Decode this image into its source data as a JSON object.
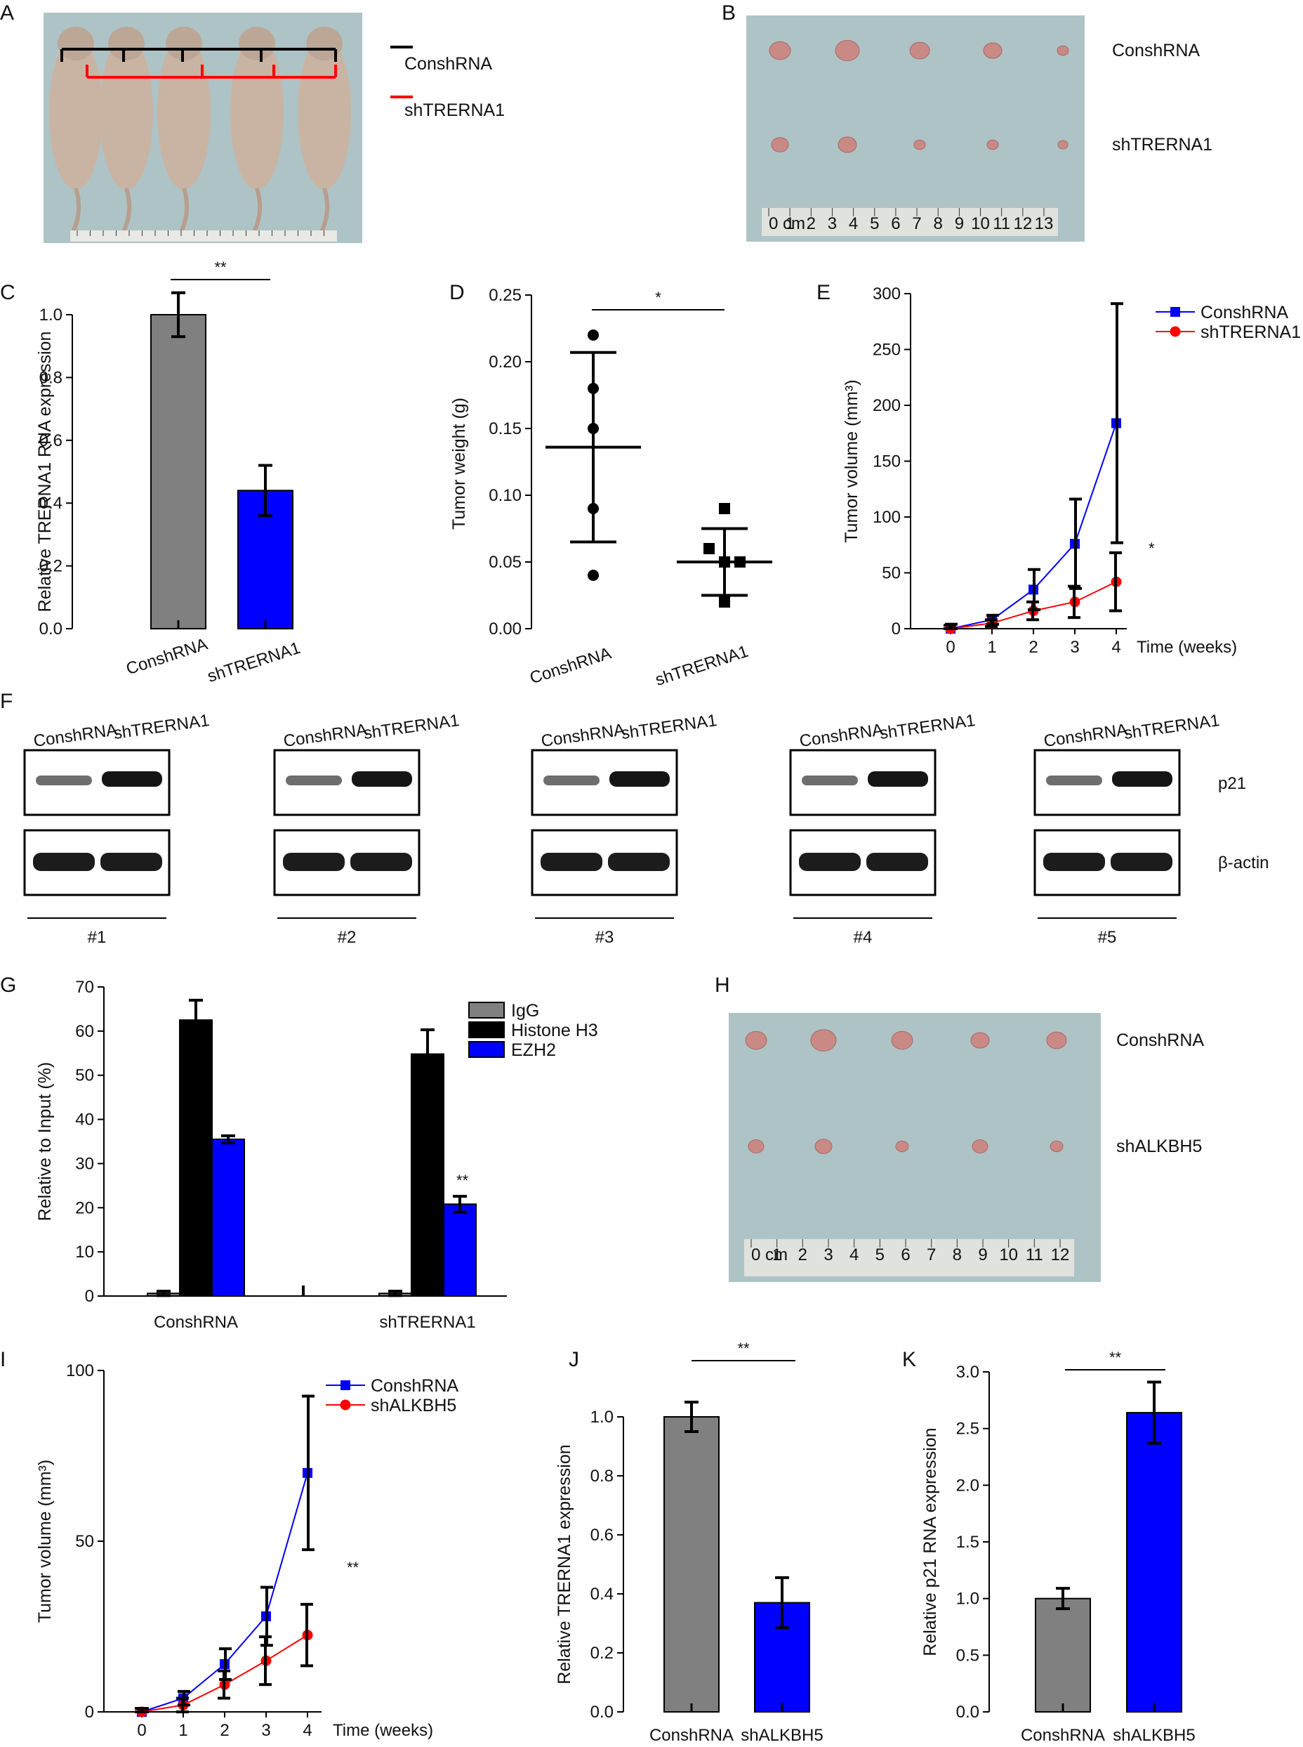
{
  "figure": {
    "panel_labels": [
      "A",
      "B",
      "C",
      "D",
      "E",
      "F",
      "G",
      "H",
      "I",
      "J",
      "K"
    ],
    "legend_top": [
      "ConshRNA",
      "shTRERNA1"
    ],
    "photo_b_rows": [
      "ConshRNA",
      "shTRERNA1"
    ],
    "photo_h_rows": [
      "ConshRNA",
      "shALKBH5"
    ],
    "ruler_b_ticks": [
      "0 cm",
      "1",
      "2",
      "3",
      "4",
      "5",
      "6",
      "7",
      "8",
      "9",
      "10",
      "11",
      "12",
      "13"
    ],
    "ruler_h_ticks": [
      "0 cm",
      "1",
      "2",
      "3",
      "4",
      "5",
      "6",
      "7",
      "8",
      "9",
      "10",
      "11",
      "12"
    ],
    "blot_f": {
      "lanes": [
        "ConshRNA",
        "shTRERNA1"
      ],
      "groups": [
        "#1",
        "#2",
        "#3",
        "#4",
        "#5"
      ],
      "rows": [
        "p21",
        "β-actin"
      ]
    },
    "colors": {
      "gray": "#808080",
      "blue": "#0000ff",
      "red": "#ff0000",
      "black": "#000000",
      "photo_bg": "#aec3c6"
    }
  },
  "chart_data": [
    {
      "id": "C",
      "type": "bar",
      "categories": [
        "ConshRNA",
        "shTRERNA1"
      ],
      "values": [
        1.0,
        0.44
      ],
      "errors": [
        0.07,
        0.08
      ],
      "colors": [
        "#808080",
        "#0000ff"
      ],
      "ylabel": "Relative TRERNA1 RNA expression",
      "ylim": [
        0,
        1.0
      ],
      "yticks": [
        "0.0",
        "0.2",
        "0.4",
        "0.6",
        "0.8",
        "1.0"
      ],
      "significance": "**"
    },
    {
      "id": "D",
      "type": "scatter",
      "categories": [
        "ConshRNA",
        "shTRERNA1"
      ],
      "points": [
        [
          0.22,
          0.18,
          0.15,
          0.09,
          0.04
        ],
        [
          0.09,
          0.06,
          0.05,
          0.05,
          0.02
        ]
      ],
      "mean": [
        0.136,
        0.05
      ],
      "sd": [
        0.071,
        0.025
      ],
      "ylabel": "Tumor weight (g)",
      "ylim": [
        0,
        0.25
      ],
      "yticks": [
        "0.00",
        "0.05",
        "0.10",
        "0.15",
        "0.20",
        "0.25"
      ],
      "significance": "*"
    },
    {
      "id": "E",
      "type": "line",
      "x": [
        0,
        1,
        2,
        3,
        4
      ],
      "xticks": [
        "0",
        "1",
        "2",
        "3",
        "4"
      ],
      "xlabel": "Time (weeks)",
      "ylabel": "Tumor volume (mm³)",
      "ylim": [
        0,
        300
      ],
      "yticks": [
        "0",
        "50",
        "100",
        "150",
        "200",
        "250",
        "300"
      ],
      "series": [
        {
          "name": "ConshRNA",
          "values": [
            0,
            8,
            35,
            76,
            184
          ],
          "errors": [
            4,
            4,
            18,
            40,
            107
          ],
          "color": "#0000ff",
          "marker": "square"
        },
        {
          "name": "shTRERNA1",
          "values": [
            0,
            5,
            16,
            24,
            42
          ],
          "errors": [
            3,
            3,
            8,
            14,
            26
          ],
          "color": "#ff0000",
          "marker": "circle"
        }
      ],
      "significance": "*"
    },
    {
      "id": "G",
      "type": "bar",
      "categories": [
        "ConshRNA",
        "shTRERNA1"
      ],
      "ylabel": "Relative to Input (%)",
      "ylim": [
        0,
        70
      ],
      "yticks": [
        "0",
        "10",
        "20",
        "30",
        "40",
        "50",
        "60",
        "70"
      ],
      "series": [
        {
          "name": "IgG",
          "values": [
            0.6,
            0.6
          ],
          "errors": [
            0.5,
            0.5
          ],
          "color": "#808080"
        },
        {
          "name": "Histone H3",
          "values": [
            62.5,
            54.8
          ],
          "errors": [
            4.5,
            5.5
          ],
          "color": "#000000"
        },
        {
          "name": "EZH2",
          "values": [
            35.5,
            20.8
          ],
          "errors": [
            0.8,
            1.8
          ],
          "color": "#0000ff"
        }
      ],
      "significance": "**"
    },
    {
      "id": "I",
      "type": "line",
      "x": [
        0,
        1,
        2,
        3,
        4
      ],
      "xticks": [
        "0",
        "1",
        "2",
        "3",
        "4"
      ],
      "xlabel": "Time (weeks)",
      "ylabel": "Tumor volume (mm³)",
      "ylim": [
        0,
        100
      ],
      "yticks": [
        "0",
        "50",
        "100"
      ],
      "series": [
        {
          "name": "ConshRNA",
          "values": [
            0,
            4,
            14,
            28,
            70
          ],
          "errors": [
            1,
            2,
            4.5,
            8.5,
            22.5
          ],
          "color": "#0000ff",
          "marker": "square"
        },
        {
          "name": "shALKBH5",
          "values": [
            0,
            2,
            8,
            15,
            22.5
          ],
          "errors": [
            1,
            2,
            4,
            7,
            9
          ],
          "color": "#ff0000",
          "marker": "circle"
        }
      ],
      "significance": "**"
    },
    {
      "id": "J",
      "type": "bar",
      "categories": [
        "ConshRNA",
        "shALKBH5"
      ],
      "values": [
        1.0,
        0.37
      ],
      "errors": [
        0.05,
        0.085
      ],
      "colors": [
        "#808080",
        "#0000ff"
      ],
      "ylabel": "Relative TRERNA1 expression",
      "ylim": [
        0,
        1.0
      ],
      "yticks": [
        "0.0",
        "0.2",
        "0.4",
        "0.6",
        "0.8",
        "1.0"
      ],
      "significance": "**"
    },
    {
      "id": "K",
      "type": "bar",
      "categories": [
        "ConshRNA",
        "shALKBH5"
      ],
      "values": [
        1.0,
        2.64
      ],
      "errors": [
        0.09,
        0.27
      ],
      "colors": [
        "#808080",
        "#0000ff"
      ],
      "ylabel": "Relative p21 RNA expression",
      "ylim": [
        0,
        3.0
      ],
      "yticks": [
        "0.0",
        "0.5",
        "1.0",
        "1.5",
        "2.0",
        "2.5",
        "3.0"
      ],
      "significance": "**"
    }
  ]
}
